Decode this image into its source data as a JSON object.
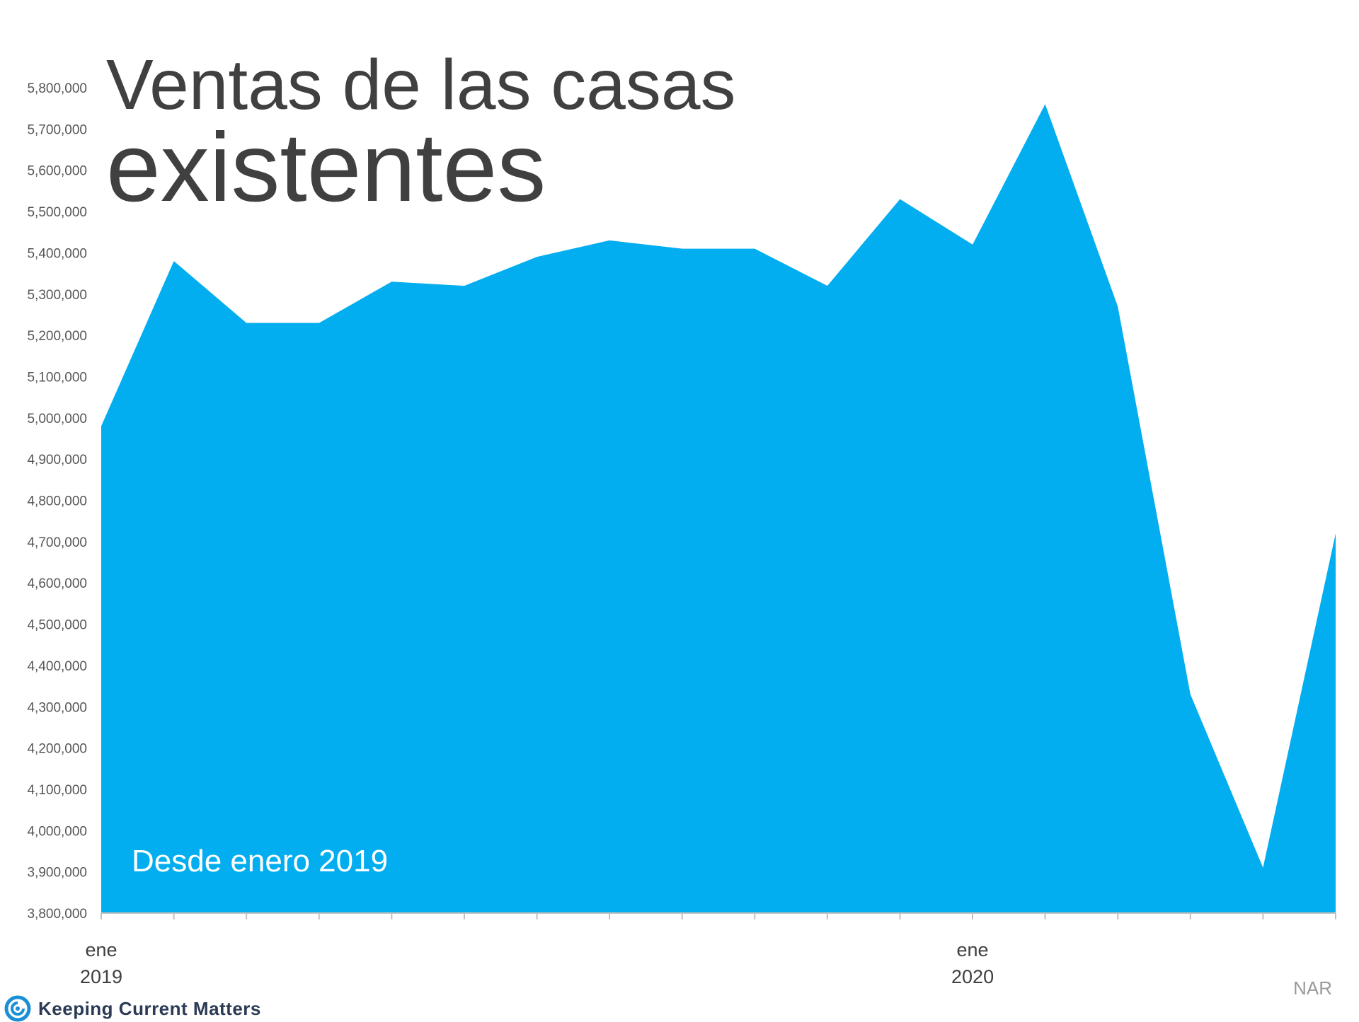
{
  "chart_data": {
    "type": "area",
    "title_line1": "Ventas de las casas",
    "title_line2": "existentes",
    "annotation": "Desde enero 2019",
    "source": "NAR",
    "color": "#02AEEF",
    "ylim": [
      3800000,
      5800000
    ],
    "yticks": [
      "5,800,000",
      "5,700,000",
      "5,600,000",
      "5,500,000",
      "5,400,000",
      "5,300,000",
      "5,200,000",
      "5,100,000",
      "5,000,000",
      "4,900,000",
      "4,800,000",
      "4,700,000",
      "4,600,000",
      "4,500,000",
      "4,400,000",
      "4,300,000",
      "4,200,000",
      "4,100,000",
      "4,000,000",
      "3,900,000",
      "3,800,000"
    ],
    "x_labels": [
      {
        "month": "ene",
        "year": "2019",
        "index": 0
      },
      {
        "month": "ene",
        "year": "2020",
        "index": 12
      }
    ],
    "values": [
      4980000,
      5380000,
      5230000,
      5230000,
      5330000,
      5320000,
      5390000,
      5430000,
      5410000,
      5410000,
      5320000,
      5530000,
      5420000,
      5760000,
      5270000,
      4330000,
      3910000,
      4720000
    ]
  },
  "brand": {
    "name": "Keeping Current Matters",
    "color": "#1a8fd6"
  }
}
